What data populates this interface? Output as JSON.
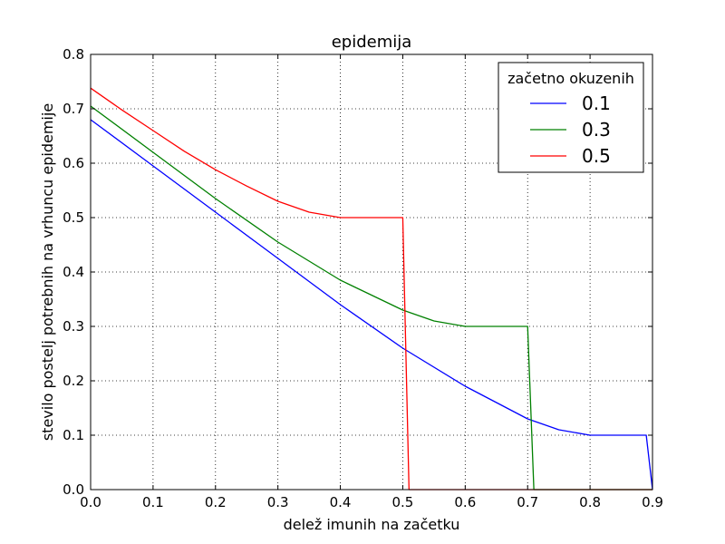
{
  "chart_data": {
    "type": "line",
    "title": "epidemija",
    "xlabel": "delež imunih na začetku",
    "ylabel": "stevilo postelj potrebnih na vrhuncu epidemije",
    "xlim": [
      0.0,
      0.9
    ],
    "ylim": [
      0.0,
      0.8
    ],
    "xticks": [
      "0.0",
      "0.1",
      "0.2",
      "0.3",
      "0.4",
      "0.5",
      "0.6",
      "0.7",
      "0.8",
      "0.9"
    ],
    "yticks": [
      "0.0",
      "0.1",
      "0.2",
      "0.3",
      "0.4",
      "0.5",
      "0.6",
      "0.7",
      "0.8"
    ],
    "grid": true,
    "legend": {
      "title": "začetno okuzenih",
      "placement": "top-right"
    },
    "series": [
      {
        "name": "0.1",
        "color": "#0000ff",
        "x": [
          0.0,
          0.1,
          0.2,
          0.3,
          0.4,
          0.5,
          0.6,
          0.7,
          0.75,
          0.8,
          0.85,
          0.89,
          0.9,
          0.9
        ],
        "y": [
          0.68,
          0.595,
          0.51,
          0.425,
          0.34,
          0.26,
          0.19,
          0.13,
          0.11,
          0.1,
          0.1,
          0.1,
          0.0,
          0.0
        ]
      },
      {
        "name": "0.3",
        "color": "#008000",
        "x": [
          0.0,
          0.1,
          0.2,
          0.3,
          0.4,
          0.5,
          0.55,
          0.6,
          0.65,
          0.7,
          0.71,
          0.71,
          0.9
        ],
        "y": [
          0.705,
          0.62,
          0.535,
          0.455,
          0.385,
          0.33,
          0.31,
          0.3,
          0.3,
          0.3,
          0.0,
          0.0,
          0.0
        ]
      },
      {
        "name": "0.5",
        "color": "#ff0000",
        "x": [
          0.0,
          0.05,
          0.1,
          0.15,
          0.2,
          0.25,
          0.3,
          0.35,
          0.4,
          0.45,
          0.5,
          0.51,
          0.51,
          0.9
        ],
        "y": [
          0.738,
          0.698,
          0.66,
          0.622,
          0.588,
          0.558,
          0.53,
          0.51,
          0.5,
          0.5,
          0.5,
          0.0,
          0.0,
          0.0
        ]
      }
    ]
  }
}
